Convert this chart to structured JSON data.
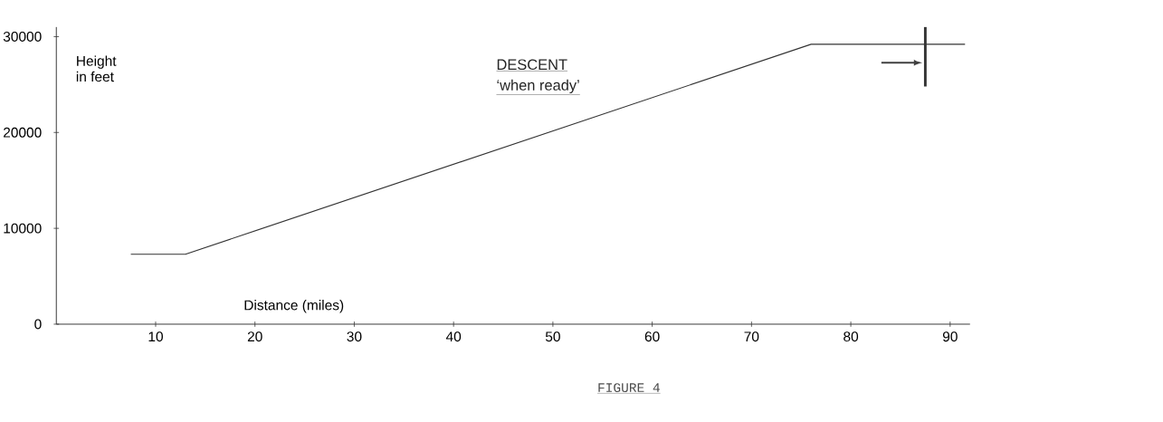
{
  "chart_data": {
    "type": "line",
    "xlabel": "Distance (miles)",
    "ylabel": "Height in feet",
    "x": [
      7.5,
      13,
      76,
      91.5
    ],
    "series": [
      {
        "color": "#333333",
        "values": [
          7300,
          7300,
          29200,
          29200
        ]
      }
    ],
    "xlim": [
      0,
      92
    ],
    "ylim": [
      0,
      31000
    ],
    "xticks": [
      10,
      20,
      30,
      40,
      50,
      60,
      70,
      80,
      90
    ],
    "yticks": [
      0,
      10000,
      20000,
      30000
    ],
    "ref_lines": [
      {
        "axis": "x",
        "value": 87.5,
        "color": "#333333"
      }
    ],
    "annotations": [
      "DESCENT",
      "‘when ready’",
      "FIGURE 4"
    ],
    "grid": false
  }
}
